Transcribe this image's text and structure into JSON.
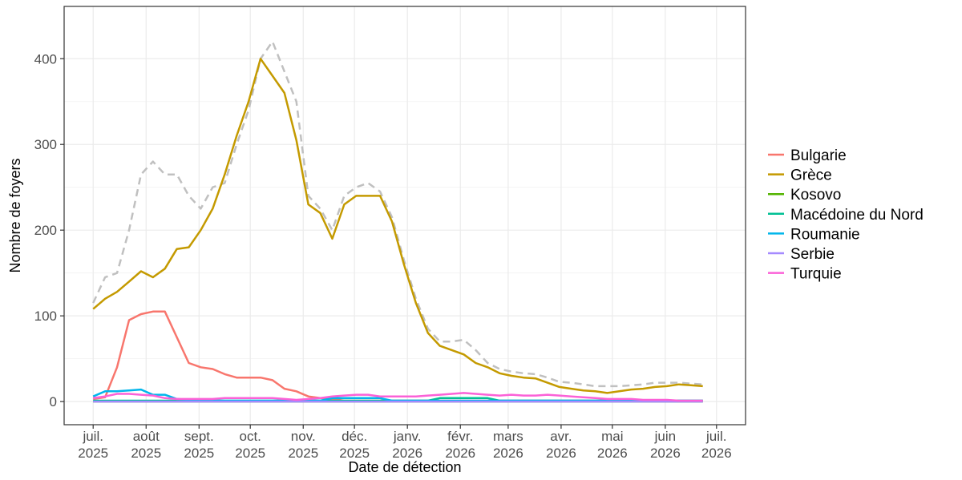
{
  "chart_data": {
    "type": "line",
    "x_label": "Date de détection",
    "y_label": "Nombre de foyers",
    "xlim": [
      "2025-06-14",
      "2026-07-18"
    ],
    "xticks": [
      {
        "value": "2025-07-01",
        "label": "juil. 2025"
      },
      {
        "value": "2025-08-01",
        "label": "août 2025"
      },
      {
        "value": "2025-09-01",
        "label": "sept. 2025"
      },
      {
        "value": "2025-10-01",
        "label": "oct. 2025"
      },
      {
        "value": "2025-11-01",
        "label": "nov. 2025"
      },
      {
        "value": "2025-12-01",
        "label": "déc. 2025"
      },
      {
        "value": "2026-01-01",
        "label": "janv. 2026"
      },
      {
        "value": "2026-02-01",
        "label": "févr. 2026"
      },
      {
        "value": "2026-03-01",
        "label": "mars 2026"
      },
      {
        "value": "2026-04-01",
        "label": "avr. 2026"
      },
      {
        "value": "2026-05-01",
        "label": "mai 2026"
      },
      {
        "value": "2026-06-01",
        "label": "juin 2026"
      },
      {
        "value": "2026-07-01",
        "label": "juil. 2026"
      }
    ],
    "ylim": [
      -27,
      461
    ],
    "yticks": [
      0,
      100,
      200,
      300,
      400
    ],
    "y_minor_ticks": [
      50,
      150,
      250,
      350
    ],
    "grid": true,
    "x": [
      "2025-07-01",
      "2025-07-08",
      "2025-07-15",
      "2025-07-22",
      "2025-07-29",
      "2025-08-05",
      "2025-08-12",
      "2025-08-19",
      "2025-08-26",
      "2025-09-02",
      "2025-09-09",
      "2025-09-16",
      "2025-09-23",
      "2025-09-30",
      "2025-10-07",
      "2025-10-14",
      "2025-10-21",
      "2025-10-28",
      "2025-11-04",
      "2025-11-11",
      "2025-11-18",
      "2025-11-25",
      "2025-12-02",
      "2025-12-09",
      "2025-12-16",
      "2025-12-23",
      "2025-12-30",
      "2026-01-06",
      "2026-01-13",
      "2026-01-20",
      "2026-01-27",
      "2026-02-03",
      "2026-02-10",
      "2026-02-17",
      "2026-02-24",
      "2026-03-03",
      "2026-03-10",
      "2026-03-17",
      "2026-03-24",
      "2026-03-31",
      "2026-04-07",
      "2026-04-14",
      "2026-04-21",
      "2026-04-28",
      "2026-05-05",
      "2026-05-12",
      "2026-05-19",
      "2026-05-26",
      "2026-06-02",
      "2026-06-09",
      "2026-06-16",
      "2026-06-23"
    ],
    "reference_line": {
      "color": "#c0c0c0",
      "dashed": true,
      "values": [
        115,
        145,
        150,
        200,
        265,
        280,
        265,
        265,
        240,
        225,
        250,
        255,
        300,
        340,
        400,
        420,
        385,
        350,
        240,
        225,
        200,
        240,
        250,
        255,
        245,
        215,
        165,
        120,
        85,
        70,
        70,
        72,
        60,
        45,
        38,
        35,
        33,
        32,
        28,
        23,
        22,
        20,
        18,
        18,
        18,
        19,
        20,
        22,
        22,
        22,
        21,
        20
      ]
    },
    "series": [
      {
        "name": "Bulgarie",
        "color": "#F8766D",
        "values": [
          3,
          5,
          40,
          95,
          102,
          105,
          105,
          75,
          45,
          40,
          38,
          32,
          28,
          28,
          28,
          25,
          15,
          12,
          6,
          4,
          3,
          1,
          1,
          1,
          1,
          1,
          1,
          1,
          1,
          1,
          1,
          1,
          1,
          1,
          1,
          1,
          1,
          1,
          1,
          1,
          1,
          1,
          1,
          1,
          1,
          1,
          1,
          1,
          1,
          1,
          1,
          1
        ]
      },
      {
        "name": "Grèce",
        "color": "#C49A00",
        "values": [
          108,
          120,
          128,
          140,
          152,
          145,
          155,
          178,
          180,
          200,
          225,
          265,
          310,
          350,
          400,
          380,
          360,
          305,
          230,
          220,
          190,
          230,
          240,
          240,
          240,
          210,
          160,
          115,
          80,
          65,
          60,
          55,
          45,
          40,
          33,
          30,
          28,
          27,
          22,
          17,
          15,
          13,
          12,
          10,
          12,
          14,
          15,
          17,
          18,
          20,
          19,
          18
        ]
      },
      {
        "name": "Kosovo",
        "color": "#53B400",
        "values": [
          0,
          0,
          0,
          0,
          0,
          0,
          0,
          0,
          0,
          0,
          0,
          0,
          0,
          0,
          0,
          0,
          0,
          0,
          0,
          0,
          0,
          0,
          0,
          0,
          0,
          0,
          0,
          0,
          0,
          0,
          0,
          0,
          0,
          0,
          0,
          0,
          0,
          0,
          0,
          0,
          0,
          0,
          0,
          0,
          0,
          0,
          0,
          0,
          0,
          0,
          0,
          0
        ]
      },
      {
        "name": "Macédoine du Nord",
        "color": "#00C094",
        "values": [
          1,
          1,
          1,
          1,
          1,
          1,
          1,
          1,
          1,
          1,
          1,
          1,
          1,
          1,
          1,
          1,
          1,
          1,
          1,
          1,
          1,
          1,
          1,
          1,
          1,
          1,
          1,
          1,
          1,
          4,
          4,
          4,
          4,
          4,
          1,
          1,
          1,
          1,
          1,
          1,
          1,
          1,
          1,
          1,
          1,
          1,
          1,
          1,
          1,
          1,
          1,
          1
        ]
      },
      {
        "name": "Roumanie",
        "color": "#00B6EB",
        "values": [
          6,
          12,
          12,
          13,
          14,
          8,
          8,
          3,
          2,
          1,
          1,
          1,
          1,
          1,
          1,
          1,
          1,
          1,
          1,
          1,
          4,
          4,
          4,
          4,
          4,
          1,
          1,
          1,
          1,
          1,
          1,
          1,
          1,
          1,
          1,
          1,
          1,
          1,
          1,
          1,
          1,
          1,
          1,
          1,
          1,
          1,
          1,
          1,
          1,
          1,
          1,
          1
        ]
      },
      {
        "name": "Serbie",
        "color": "#A58AFF",
        "values": [
          0,
          0,
          0,
          0,
          0,
          0,
          0,
          0,
          0,
          0,
          0,
          0,
          0,
          0,
          0,
          0,
          0,
          0,
          0,
          0,
          0,
          0,
          0,
          0,
          0,
          0,
          0,
          0,
          0,
          0,
          0,
          0,
          0,
          0,
          0,
          0,
          0,
          0,
          0,
          0,
          0,
          0,
          0,
          0,
          0,
          0,
          0,
          0,
          0,
          0,
          0,
          0
        ]
      },
      {
        "name": "Turquie",
        "color": "#FB61D7",
        "values": [
          4,
          6,
          9,
          9,
          8,
          7,
          4,
          3,
          3,
          3,
          3,
          4,
          4,
          4,
          4,
          4,
          3,
          2,
          3,
          4,
          6,
          7,
          8,
          8,
          6,
          6,
          6,
          6,
          7,
          8,
          9,
          10,
          9,
          8,
          7,
          8,
          7,
          7,
          8,
          7,
          6,
          5,
          4,
          3,
          3,
          3,
          2,
          2,
          2,
          1,
          1,
          1
        ]
      }
    ]
  }
}
